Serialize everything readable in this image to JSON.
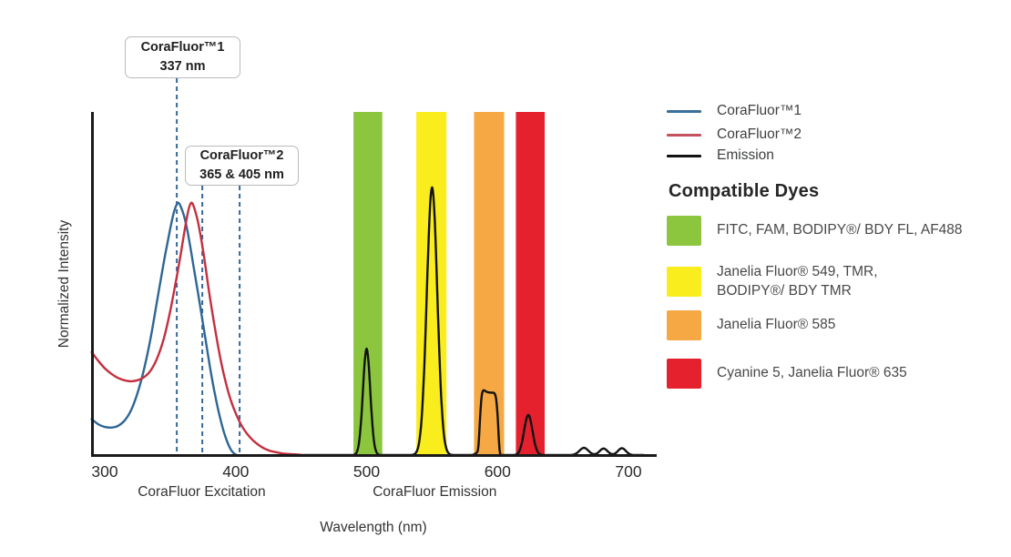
{
  "chart_data": {
    "type": "line",
    "title": "",
    "xlabel": "Wavelength (nm)",
    "ylabel": "Normalized Intensity",
    "x_ticks": [
      300,
      400,
      500,
      600,
      700
    ],
    "xlim": [
      290,
      712
    ],
    "ylim": [
      0,
      1
    ],
    "grid": false,
    "legend_position": "right",
    "axis_section_labels": [
      {
        "text": "CoraFluor Excitation",
        "center_nm": 374
      },
      {
        "text": "CoraFluor Emission",
        "center_nm": 552
      }
    ],
    "series": [
      {
        "name": "CoraFluor™1",
        "role": "excitation",
        "color": "#2E6695",
        "points": [
          [
            290,
            0.105
          ],
          [
            295,
            0.09
          ],
          [
            300,
            0.082
          ],
          [
            305,
            0.08
          ],
          [
            310,
            0.085
          ],
          [
            315,
            0.1
          ],
          [
            320,
            0.13
          ],
          [
            325,
            0.18
          ],
          [
            330,
            0.25
          ],
          [
            335,
            0.34
          ],
          [
            340,
            0.45
          ],
          [
            345,
            0.56
          ],
          [
            350,
            0.66
          ],
          [
            353,
            0.71
          ],
          [
            356,
            0.735
          ],
          [
            359,
            0.715
          ],
          [
            362,
            0.675
          ],
          [
            365,
            0.615
          ],
          [
            368,
            0.545
          ],
          [
            372,
            0.455
          ],
          [
            376,
            0.36
          ],
          [
            380,
            0.265
          ],
          [
            384,
            0.18
          ],
          [
            388,
            0.11
          ],
          [
            392,
            0.055
          ],
          [
            396,
            0.018
          ],
          [
            399,
            0.004
          ],
          [
            401,
            0
          ]
        ]
      },
      {
        "name": "CoraFluor™2",
        "role": "excitation",
        "color": "#C42F3E",
        "points": [
          [
            290,
            0.3
          ],
          [
            295,
            0.275
          ],
          [
            300,
            0.253
          ],
          [
            305,
            0.237
          ],
          [
            310,
            0.225
          ],
          [
            315,
            0.218
          ],
          [
            320,
            0.215
          ],
          [
            325,
            0.218
          ],
          [
            330,
            0.227
          ],
          [
            335,
            0.246
          ],
          [
            340,
            0.282
          ],
          [
            345,
            0.338
          ],
          [
            350,
            0.42
          ],
          [
            355,
            0.52
          ],
          [
            358,
            0.585
          ],
          [
            361,
            0.655
          ],
          [
            364,
            0.715
          ],
          [
            366,
            0.735
          ],
          [
            368,
            0.724
          ],
          [
            371,
            0.683
          ],
          [
            374,
            0.622
          ],
          [
            377,
            0.548
          ],
          [
            380,
            0.468
          ],
          [
            384,
            0.373
          ],
          [
            388,
            0.288
          ],
          [
            392,
            0.218
          ],
          [
            396,
            0.163
          ],
          [
            400,
            0.122
          ],
          [
            405,
            0.083
          ],
          [
            410,
            0.056
          ],
          [
            415,
            0.037
          ],
          [
            420,
            0.023
          ],
          [
            425,
            0.014
          ],
          [
            430,
            0.009
          ],
          [
            437,
            0.004
          ],
          [
            445,
            0.002
          ],
          [
            452,
            0
          ]
        ]
      },
      {
        "name": "Emission",
        "role": "emission",
        "color": "#121212",
        "peaks": [
          {
            "shape": "gaussian",
            "center_nm": 500,
            "height": 0.31,
            "sigma_nm": 2.8
          },
          {
            "shape": "gaussian",
            "center_nm": 550,
            "height": 0.78,
            "sigma_nm": 4.0
          },
          {
            "shape": "flattop",
            "center_nm": 593.5,
            "height": 0.182,
            "half_width_nm": 7.2,
            "power": 8
          },
          {
            "shape": "gaussian",
            "center_nm": 587,
            "height": 0.014,
            "sigma_nm": 2.5
          },
          {
            "shape": "gaussian",
            "center_nm": 623.5,
            "height": 0.117,
            "sigma_nm": 3.2
          },
          {
            "shape": "gaussian",
            "center_nm": 666,
            "height": 0.021,
            "sigma_nm": 3.4
          },
          {
            "shape": "gaussian",
            "center_nm": 681,
            "height": 0.019,
            "sigma_nm": 3.0
          },
          {
            "shape": "gaussian",
            "center_nm": 695,
            "height": 0.02,
            "sigma_nm": 3.0
          }
        ]
      }
    ],
    "filter_bands": [
      {
        "nm": [
          490,
          512
        ],
        "color": "#8CC63F"
      },
      {
        "nm": [
          538,
          561
        ],
        "color": "#F9ED1E"
      },
      {
        "nm": [
          582,
          605
        ],
        "color": "#F5A843"
      },
      {
        "nm": [
          614,
          636
        ],
        "color": "#E5212D"
      }
    ],
    "dashed_lines": {
      "color": "#36689B",
      "items": [
        {
          "nm": 355,
          "top_y": 86
        },
        {
          "nm": 374.5,
          "top_y": 204
        },
        {
          "nm": 403,
          "top_y": 204
        }
      ]
    }
  },
  "annotations": [
    {
      "title": "CoraFluor™1",
      "subtitle": "337 nm"
    },
    {
      "title": "CoraFluor™2",
      "subtitle": "365 & 405 nm"
    }
  ],
  "legend": {
    "items": [
      {
        "label": "CoraFluor™1",
        "color": "#3A6E9C"
      },
      {
        "label": "CoraFluor™2",
        "color": "#C2525C"
      },
      {
        "label": "Emission",
        "color": "#121212"
      }
    ]
  },
  "compatible_dyes": {
    "heading": "Compatible Dyes",
    "items": [
      {
        "color": "#8CC63F",
        "lines": [
          "FITC, FAM, BODIPY®/ BDY FL, AF488"
        ]
      },
      {
        "color": "#F9ED1E",
        "lines": [
          "Janelia Fluor® 549, TMR,",
          "BODIPY®/ BDY TMR"
        ]
      },
      {
        "color": "#F5A843",
        "lines": [
          "Janelia Fluor® 585"
        ]
      },
      {
        "color": "#E5212D",
        "lines": [
          "Cyanine 5, Janelia Fluor® 635"
        ]
      }
    ]
  }
}
